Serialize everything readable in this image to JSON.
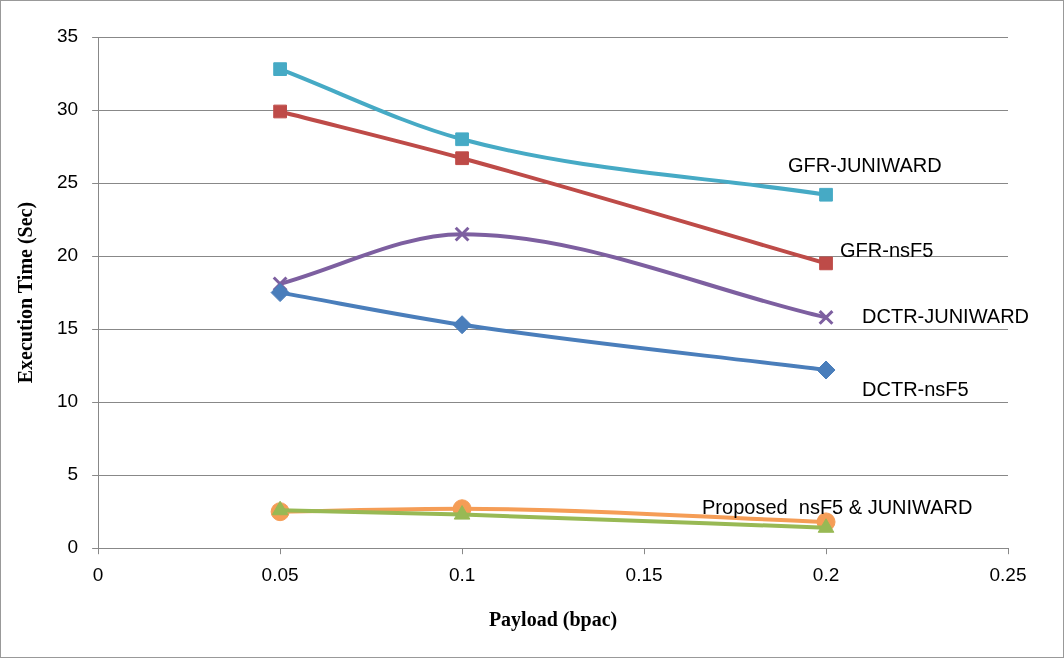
{
  "chart_data": {
    "type": "line",
    "xlabel": "Payload (bpac)",
    "ylabel": "Execution Time (Sec)",
    "xlim": [
      0,
      0.25
    ],
    "xticks": [
      0,
      0.05,
      0.1,
      0.15,
      0.2,
      0.25
    ],
    "ylim": [
      0,
      35
    ],
    "yticks": [
      0,
      5,
      10,
      15,
      20,
      25,
      30,
      35
    ],
    "grid": "y",
    "legend": false,
    "line_style": "solid",
    "series": [
      {
        "name": "DCTR-nsF5",
        "color": "#4a7ebb",
        "marker": "diamond",
        "x": [
          0.05,
          0.1,
          0.2
        ],
        "values": [
          17.5,
          15.3,
          12.2
        ]
      },
      {
        "name": "GFR-nsF5",
        "color": "#be4b48",
        "marker": "square",
        "x": [
          0.05,
          0.1,
          0.2
        ],
        "values": [
          29.9,
          26.7,
          19.5
        ]
      },
      {
        "name": "DCTR-JUNIWARD",
        "color": "#7d5fa0",
        "marker": "cross",
        "x": [
          0.05,
          0.1,
          0.2
        ],
        "values": [
          18.1,
          21.5,
          15.8
        ]
      },
      {
        "name": "GFR-JUNIWARD",
        "color": "#46aac5",
        "marker": "square",
        "x": [
          0.05,
          0.1,
          0.2
        ],
        "values": [
          32.8,
          28.0,
          24.2
        ]
      },
      {
        "color": "#98b954",
        "marker": "triangle",
        "x": [
          0.05,
          0.1,
          0.2
        ],
        "values": [
          2.6,
          2.3,
          1.4
        ]
      },
      {
        "color": "#f59d56",
        "marker": "circle",
        "x": [
          0.05,
          0.1,
          0.2
        ],
        "values": [
          2.5,
          2.7,
          1.8
        ]
      }
    ],
    "annotations": [
      {
        "text": "Proposed  nsF5 & JUNIWARD",
        "x": 0.2,
        "y": 1.8
      }
    ]
  }
}
